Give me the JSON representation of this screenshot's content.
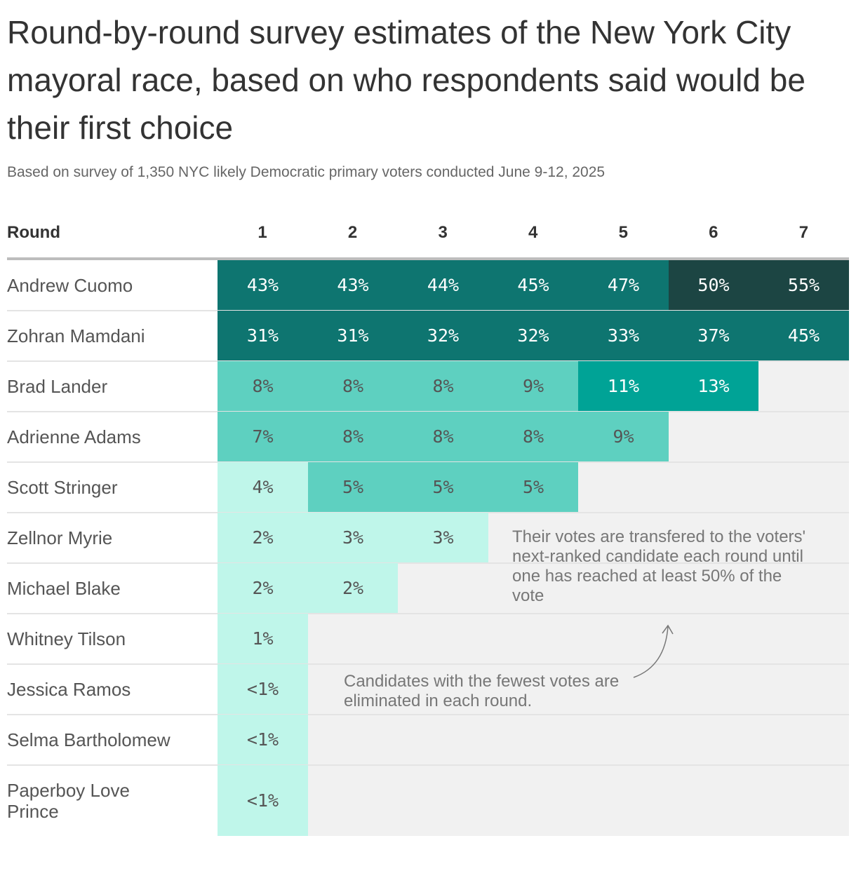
{
  "chart_data": {
    "type": "table",
    "title": "Round-by-round survey estimates of the New York City mayoral race, based on who respondents said would be their first choice",
    "subtitle": "Based on survey of 1,350 NYC likely Democratic primary voters conducted June 9-12, 2025",
    "row_header": "Round",
    "rounds": [
      "1",
      "2",
      "3",
      "4",
      "5",
      "6",
      "7"
    ],
    "candidates": [
      {
        "name": "Andrew Cuomo",
        "values": [
          "43%",
          "43%",
          "44%",
          "45%",
          "47%",
          "50%",
          "55%"
        ]
      },
      {
        "name": "Zohran Mamdani",
        "values": [
          "31%",
          "31%",
          "32%",
          "32%",
          "33%",
          "37%",
          "45%"
        ]
      },
      {
        "name": "Brad Lander",
        "values": [
          "8%",
          "8%",
          "8%",
          "9%",
          "11%",
          "13%"
        ]
      },
      {
        "name": "Adrienne Adams",
        "values": [
          "7%",
          "8%",
          "8%",
          "8%",
          "9%"
        ]
      },
      {
        "name": "Scott Stringer",
        "values": [
          "4%",
          "5%",
          "5%",
          "5%"
        ]
      },
      {
        "name": "Zellnor Myrie",
        "values": [
          "2%",
          "3%",
          "3%"
        ]
      },
      {
        "name": "Michael Blake",
        "values": [
          "2%",
          "2%"
        ]
      },
      {
        "name": "Whitney Tilson",
        "values": [
          "1%"
        ]
      },
      {
        "name": "Jessica Ramos",
        "values": [
          "<1%"
        ]
      },
      {
        "name": "Selma Bartholomew",
        "values": [
          "<1%"
        ]
      },
      {
        "name": "Paperboy Love Prince",
        "values": [
          "<1%"
        ]
      }
    ],
    "annotations": {
      "transfer": "Their votes are transfered to the voters' next-ranked candidate each round until one has reached at least 50% of the vote",
      "eliminated": "Candidates with the fewest votes are eliminated in each round."
    },
    "colors": {
      "scale": [
        "#bff6ea",
        "#5ed0c0",
        "#00a396",
        "#0e7570",
        "#1c4543"
      ],
      "eliminated_bg": "#f1f1f1",
      "light_text": "#555555",
      "dark_text": "#ffffff"
    }
  }
}
